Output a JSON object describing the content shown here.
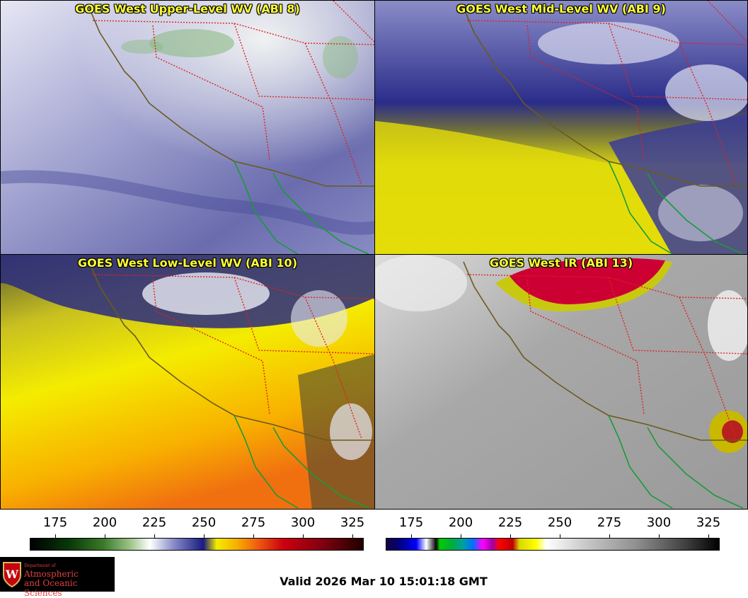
{
  "panels": [
    {
      "title": "GOES West Upper-Level WV (ABI 8)"
    },
    {
      "title": "GOES West Mid-Level WV (ABI 9)"
    },
    {
      "title": "GOES West Low-Level WV (ABI 10)"
    },
    {
      "title": "GOES West IR (ABI 13)"
    }
  ],
  "colorbars": [
    {
      "ticks": [
        "175",
        "200",
        "225",
        "250",
        "275",
        "300",
        "325"
      ]
    },
    {
      "ticks": [
        "175",
        "200",
        "225",
        "250",
        "275",
        "300",
        "325"
      ]
    }
  ],
  "logo": {
    "line1": "Department of",
    "line2": "Atmospheric",
    "line3": "and Oceanic Sciences"
  },
  "valid_text": "Valid 2026 Mar 10 15:01:18 GMT",
  "colors": {
    "title": "#ffff33",
    "state_border": "#dd2222",
    "coast_us": "#6b5a1e",
    "coast_mx": "#1a9a3a"
  }
}
